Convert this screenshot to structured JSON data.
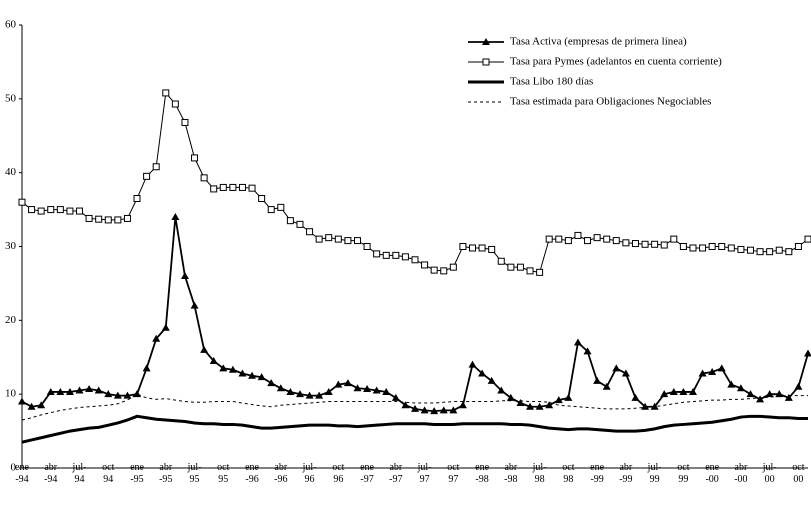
{
  "chart_data": {
    "type": "line",
    "categories": [
      "ene\n-94",
      null,
      null,
      "abr\n-94",
      null,
      null,
      "jul-\n94",
      null,
      null,
      "oct\n94",
      null,
      null,
      "ene\n-95",
      null,
      null,
      "abr\n-95",
      null,
      null,
      "jul-\n95",
      null,
      null,
      "oct\n95",
      null,
      null,
      "ene\n-96",
      null,
      null,
      "abr\n-96",
      null,
      null,
      "jul-\n96",
      null,
      null,
      "oct\n96",
      null,
      null,
      "ene\n-97",
      null,
      null,
      "abr\n-97",
      null,
      null,
      "jul-\n97",
      null,
      null,
      "oct\n97",
      null,
      null,
      "ene\n-98",
      null,
      null,
      "abr\n-98",
      null,
      null,
      "jul-\n98",
      null,
      null,
      "oct\n98",
      null,
      null,
      "ene\n-99",
      null,
      null,
      "abr\n-99",
      null,
      null,
      "jul-\n99",
      null,
      null,
      "oct\n99",
      null,
      null,
      "ene\n-00",
      null,
      null,
      "abr\n-00",
      null,
      null,
      "jul-\n00",
      null,
      null,
      "oct\n00",
      null
    ],
    "series": [
      {
        "name": "Tasa Activa (empresas de primera línea)",
        "color": "#000000",
        "marker": "triangle",
        "line_style": "solid",
        "values": [
          9,
          8.3,
          8.5,
          10.3,
          10.3,
          10.3,
          10.5,
          10.7,
          10.5,
          10,
          9.8,
          9.8,
          10,
          13.5,
          17.5,
          19,
          34,
          26,
          22,
          16,
          14.5,
          13.5,
          13.3,
          12.8,
          12.5,
          12.3,
          11.5,
          10.8,
          10.3,
          10,
          9.8,
          9.8,
          10.3,
          11.3,
          11.5,
          10.8,
          10.7,
          10.5,
          10.3,
          9.5,
          8.5,
          8,
          7.8,
          7.7,
          7.8,
          7.8,
          8.5,
          14,
          12.8,
          11.8,
          10.5,
          9.5,
          8.8,
          8.3,
          8.3,
          8.5,
          9.2,
          9.5,
          17,
          15.8,
          11.8,
          11,
          13.5,
          12.8,
          9.5,
          8.3,
          8.3,
          10,
          10.3,
          10.3,
          10.3,
          12.8,
          13,
          13.5,
          11.3,
          10.8,
          10,
          9.3,
          10,
          10,
          9.5,
          11,
          15.5
        ]
      },
      {
        "name": "Tasa para Pymes (adelantos en cuenta corriente)",
        "color": "#000000",
        "marker": "square",
        "line_style": "solid",
        "values": [
          36,
          35,
          34.8,
          35,
          35,
          34.8,
          34.8,
          33.8,
          33.7,
          33.6,
          33.6,
          33.8,
          36.5,
          39.5,
          40.8,
          50.8,
          49.3,
          46.8,
          42,
          39.3,
          37.8,
          38,
          38,
          38,
          37.9,
          36.5,
          35,
          35.3,
          33.5,
          33,
          32,
          31,
          31.2,
          31,
          30.8,
          30.8,
          30,
          29,
          28.8,
          28.8,
          28.6,
          28.2,
          27.5,
          26.8,
          26.7,
          27.2,
          30,
          29.8,
          29.8,
          29.6,
          28,
          27.2,
          27.2,
          26.7,
          26.5,
          31,
          31,
          30.8,
          31.5,
          30.8,
          31.2,
          31,
          30.8,
          30.5,
          30.4,
          30.3,
          30.3,
          30.2,
          31,
          30,
          29.8,
          29.8,
          30,
          30,
          29.8,
          29.6,
          29.5,
          29.3,
          29.3,
          29.5,
          29.3,
          30,
          31
        ]
      },
      {
        "name": "Tasa Libo 180 días",
        "color": "#000000",
        "marker": null,
        "line_style": "thick",
        "values": [
          3.5,
          3.8,
          4.1,
          4.4,
          4.7,
          5,
          5.2,
          5.4,
          5.5,
          5.8,
          6.1,
          6.5,
          7,
          6.8,
          6.6,
          6.5,
          6.4,
          6.3,
          6.1,
          6,
          6,
          5.9,
          5.9,
          5.8,
          5.6,
          5.4,
          5.4,
          5.5,
          5.6,
          5.7,
          5.8,
          5.8,
          5.8,
          5.7,
          5.7,
          5.6,
          5.7,
          5.8,
          5.9,
          6,
          6,
          6,
          6,
          5.9,
          5.9,
          5.9,
          6,
          6,
          6,
          6,
          6,
          5.9,
          5.9,
          5.8,
          5.6,
          5.4,
          5.3,
          5.2,
          5.3,
          5.3,
          5.2,
          5.1,
          5,
          5,
          5,
          5.1,
          5.3,
          5.6,
          5.8,
          5.9,
          6,
          6.1,
          6.2,
          6.4,
          6.6,
          6.9,
          7,
          7,
          6.9,
          6.8,
          6.8,
          6.7,
          6.7
        ]
      },
      {
        "name": "Tasa estimada para Obligaciones Negociables",
        "color": "#000000",
        "marker": null,
        "line_style": "dashed",
        "values": [
          6.5,
          6.8,
          7.2,
          7.5,
          7.8,
          8,
          8.2,
          8.3,
          8.4,
          8.5,
          8.7,
          9.2,
          10,
          9.5,
          9.3,
          9.4,
          9.2,
          9,
          8.9,
          8.9,
          9,
          9,
          9,
          8.8,
          8.6,
          8.4,
          8.3,
          8.5,
          8.6,
          8.7,
          8.8,
          8.9,
          9,
          9,
          9,
          9,
          9,
          9,
          9,
          9,
          8.9,
          8.8,
          8.8,
          8.8,
          8.9,
          9,
          9,
          9,
          9,
          9,
          9.1,
          9.1,
          9.1,
          9,
          9,
          8.9,
          8.5,
          8.4,
          8.3,
          8.2,
          8.1,
          8,
          8,
          8,
          8.1,
          8.2,
          8.3,
          8.5,
          8.7,
          8.9,
          9,
          9.1,
          9.2,
          9.2,
          9.3,
          9.3,
          9.4,
          9.5,
          9.6,
          9.7,
          9.8,
          9.8,
          9.8
        ]
      }
    ],
    "ylim": [
      0,
      60
    ],
    "yticks": [
      0,
      10,
      20,
      30,
      40,
      50,
      60
    ],
    "legend": "upper right"
  }
}
